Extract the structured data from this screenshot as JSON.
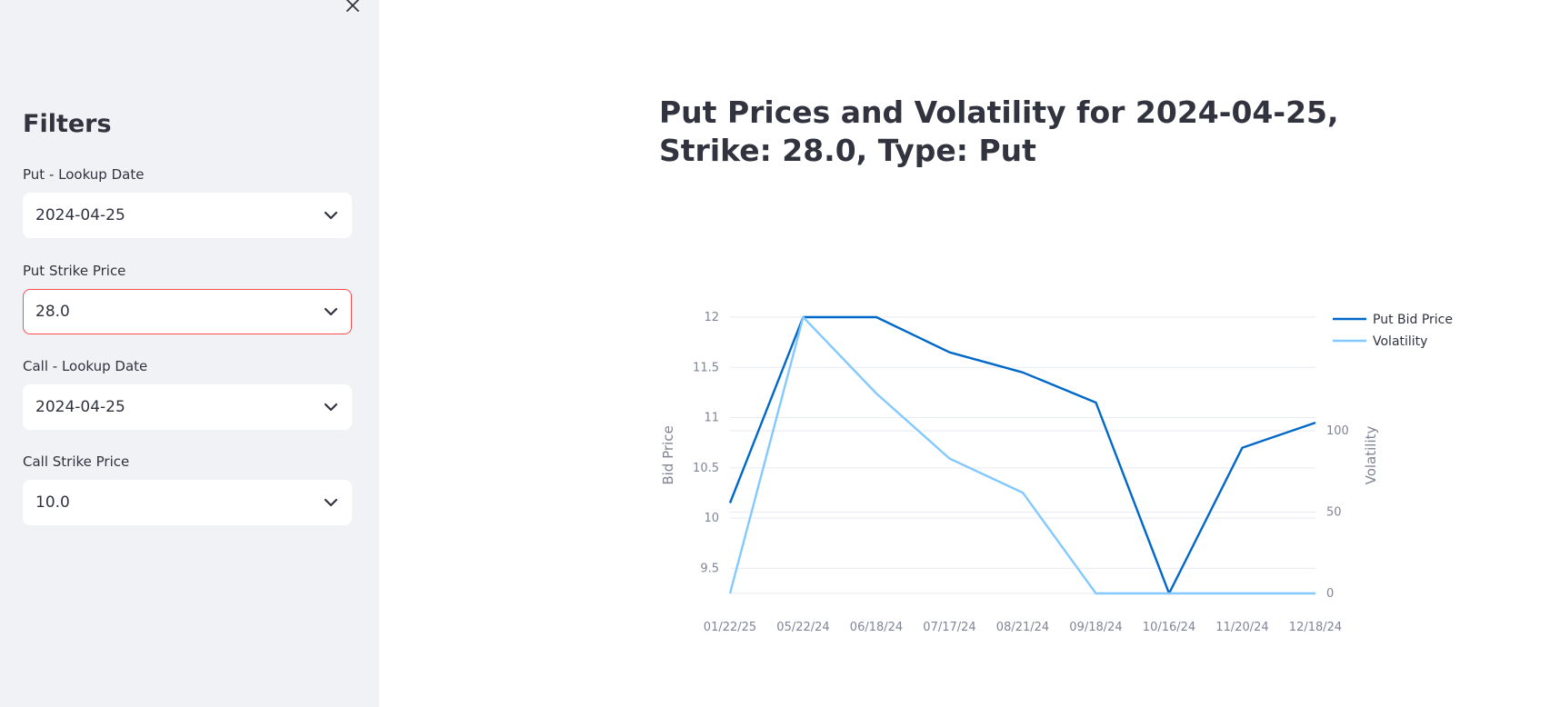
{
  "sidebar": {
    "title": "Filters",
    "close_icon": "close-icon",
    "fields": [
      {
        "label": "Put - Lookup Date",
        "value": "2024-04-25"
      },
      {
        "label": "Put Strike Price",
        "value": "28.0"
      },
      {
        "label": "Call - Lookup Date",
        "value": "2024-04-25"
      },
      {
        "label": "Call Strike Price",
        "value": "10.0"
      }
    ]
  },
  "main": {
    "title": "Put Prices and Volatility for 2024-04-25, Strike: 28.0, Type: Put"
  },
  "colors": {
    "put_bid": "#0068c9",
    "volatility": "#83c9ff",
    "focus_border": "#ff4b4b"
  },
  "chart_data": {
    "type": "line",
    "x": [
      "01/22/25",
      "05/22/24",
      "06/18/24",
      "07/17/24",
      "08/21/24",
      "09/18/24",
      "10/16/24",
      "11/20/24",
      "12/18/24"
    ],
    "ylabel": "Bid Price",
    "y2label": "Volatility",
    "y_ticks": [
      "9.5",
      "10",
      "10.5",
      "11",
      "11.5",
      "12"
    ],
    "y2_ticks": [
      "0",
      "50",
      "100"
    ],
    "ylim": [
      9.25,
      12
    ],
    "y2lim": [
      0,
      170
    ],
    "legend_position": "top-right",
    "grid": true,
    "series": [
      {
        "name": "Put Bid Price",
        "axis": "left",
        "values": [
          10.15,
          12.0,
          12.0,
          11.65,
          11.45,
          11.15,
          9.25,
          10.7,
          10.95
        ]
      },
      {
        "name": "Volatility",
        "axis": "right",
        "values": [
          0,
          170,
          123,
          83,
          62,
          0,
          0,
          0,
          0
        ]
      }
    ]
  }
}
